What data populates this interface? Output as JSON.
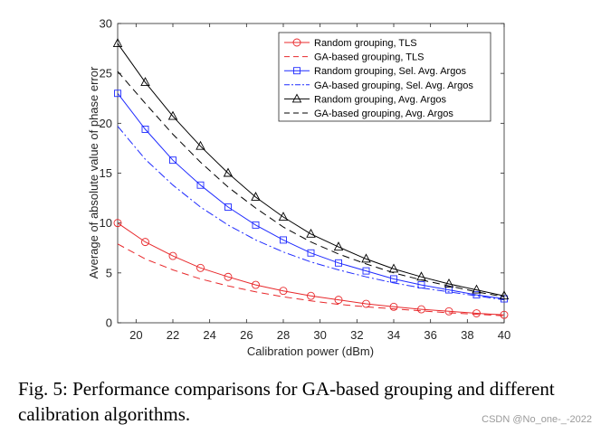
{
  "chart_data": {
    "type": "line",
    "xlabel": "Calibration power (dBm)",
    "ylabel": "Average of absolute value of phase error",
    "xlim": [
      19,
      40
    ],
    "ylim": [
      0,
      30
    ],
    "xticks": [
      20,
      22,
      24,
      26,
      28,
      30,
      32,
      34,
      36,
      38,
      40
    ],
    "yticks": [
      0,
      5,
      10,
      15,
      20,
      25,
      30
    ],
    "legend_position": "top-right",
    "x": [
      19,
      20.5,
      22,
      23.5,
      25,
      26.5,
      28,
      29.5,
      31,
      32.5,
      34,
      35.5,
      37,
      38.5,
      40
    ],
    "series": [
      {
        "name": "Random grouping, TLS",
        "color": "#e8282b",
        "dash": "solid",
        "marker": "circle",
        "values": [
          10.0,
          8.1,
          6.7,
          5.5,
          4.6,
          3.8,
          3.2,
          2.7,
          2.3,
          1.9,
          1.6,
          1.35,
          1.15,
          0.95,
          0.8
        ]
      },
      {
        "name": "GA-based grouping, TLS",
        "color": "#e8282b",
        "dash": "dashed",
        "marker": "none",
        "values": [
          7.9,
          6.4,
          5.3,
          4.4,
          3.7,
          3.1,
          2.6,
          2.2,
          1.85,
          1.6,
          1.4,
          1.2,
          1.0,
          0.85,
          0.7
        ]
      },
      {
        "name": "Random grouping, Sel. Avg. Argos",
        "color": "#1f2bff",
        "dash": "solid",
        "marker": "square",
        "values": [
          23.0,
          19.4,
          16.3,
          13.8,
          11.6,
          9.8,
          8.3,
          7.0,
          6.0,
          5.2,
          4.4,
          3.8,
          3.3,
          2.8,
          2.4
        ]
      },
      {
        "name": "GA-based grouping, Sel. Avg. Argos",
        "color": "#1f2bff",
        "dash": "dashdot",
        "marker": "none",
        "values": [
          19.7,
          16.4,
          13.8,
          11.6,
          9.8,
          8.3,
          7.1,
          6.1,
          5.3,
          4.6,
          4.0,
          3.5,
          3.1,
          2.7,
          2.3
        ]
      },
      {
        "name": "Random grouping, Avg. Argos",
        "color": "#000000",
        "dash": "solid",
        "marker": "triangle",
        "values": [
          28.0,
          24.1,
          20.7,
          17.7,
          15.0,
          12.6,
          10.6,
          8.9,
          7.6,
          6.4,
          5.4,
          4.6,
          3.9,
          3.3,
          2.7
        ]
      },
      {
        "name": "GA-based grouping, Avg. Argos",
        "color": "#000000",
        "dash": "dashed",
        "marker": "none",
        "values": [
          25.2,
          22.0,
          18.9,
          16.1,
          13.6,
          11.5,
          9.6,
          8.1,
          6.9,
          5.9,
          5.0,
          4.3,
          3.7,
          3.1,
          2.6
        ]
      }
    ]
  },
  "caption": "Fig. 5: Performance comparisons for GA-based grouping and different calibration algorithms.",
  "watermark": "CSDN @No_one-_-2022"
}
